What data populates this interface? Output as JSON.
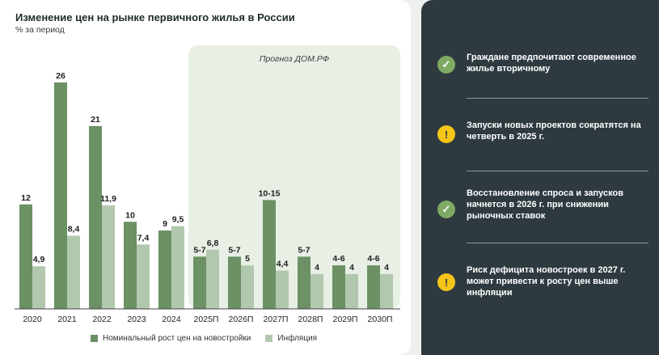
{
  "title": "Изменение цен на рынке первичного жилья в России",
  "subtitle": "% за период",
  "forecast_label": "Прогноз ДОМ.РФ",
  "colors": {
    "nominal": "#6b9165",
    "inflation": "#b2c8ae",
    "forecast_bg": "#e8efe5",
    "dark_panel": "#2e3a40",
    "ok": "#7faa63",
    "warn": "#f5c518"
  },
  "chart_data": {
    "type": "bar",
    "categories": [
      "2020",
      "2021",
      "2022",
      "2023",
      "2024",
      "2025П",
      "2026П",
      "2027П",
      "2028П",
      "2029П",
      "2030П"
    ],
    "series": [
      {
        "name": "Номинальный рост цен на новостройки",
        "values": [
          12,
          26,
          21,
          10,
          9,
          6,
          6,
          12.5,
          6,
          5,
          5
        ],
        "labels": [
          "12",
          "26",
          "21",
          "10",
          "9",
          "5-7",
          "5-7",
          "10-15",
          "5-7",
          "4-6",
          "4-6"
        ]
      },
      {
        "name": "Инфляция",
        "values": [
          4.9,
          8.4,
          11.9,
          7.4,
          9.5,
          6.8,
          5,
          4.4,
          4,
          4,
          4
        ],
        "labels": [
          "4,9",
          "8,4",
          "11,9",
          "7,4",
          "9,5",
          "6,8",
          "5",
          "4,4",
          "4",
          "4",
          "4"
        ]
      }
    ],
    "forecast_from": "2025П",
    "ylim": [
      0,
      26
    ]
  },
  "notes": [
    {
      "icon": "check-icon",
      "type": "ok",
      "text": "Граждане предпочитают современное жилье вторичному"
    },
    {
      "icon": "exclamation-icon",
      "type": "warn",
      "text": "Запуски новых проектов сократятся на четверть в 2025 г."
    },
    {
      "icon": "check-icon",
      "type": "ok",
      "text": "Восстановление спроса и запусков начнется в 2026 г. при снижении рыночных ставок"
    },
    {
      "icon": "exclamation-icon",
      "type": "warn",
      "text": "Риск дефицита новостроек в 2027 г. может привести к росту цен выше инфляции"
    }
  ]
}
